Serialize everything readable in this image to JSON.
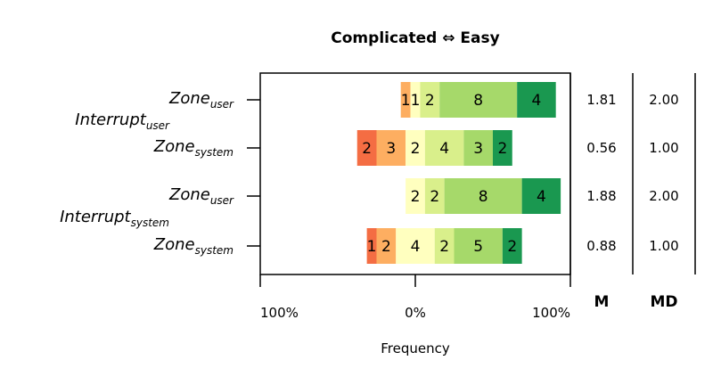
{
  "chart_data": {
    "type": "bar",
    "orientation": "horizontal",
    "stacked": "diverging",
    "title": "Complicated ⇔ Easy",
    "xlabel": "Frequency",
    "x_ticks": [
      "100%",
      "0%",
      "100%"
    ],
    "xlim": [
      -100,
      100
    ],
    "groups": [
      {
        "name": "Interrupt",
        "sub": "user",
        "rows": [
          {
            "name": "Zone",
            "sub": "user",
            "counts": [
              0,
              0,
              1,
              1,
              2,
              8,
              4
            ],
            "mean": "1.81",
            "median": "2.00"
          },
          {
            "name": "Zone",
            "sub": "system",
            "counts": [
              0,
              2,
              3,
              2,
              4,
              3,
              2
            ],
            "mean": "0.56",
            "median": "1.00"
          }
        ]
      },
      {
        "name": "Interrupt",
        "sub": "system",
        "rows": [
          {
            "name": "Zone",
            "sub": "user",
            "counts": [
              0,
              0,
              0,
              2,
              2,
              8,
              4
            ],
            "mean": "1.88",
            "median": "2.00"
          },
          {
            "name": "Zone",
            "sub": "system",
            "counts": [
              0,
              1,
              2,
              4,
              2,
              5,
              2
            ],
            "mean": "0.88",
            "median": "1.00"
          }
        ]
      }
    ],
    "scale_colors": [
      "#d73027",
      "#f46d43",
      "#fdae61",
      "#ffffbf",
      "#d9ef8b",
      "#a6d96a",
      "#1a9850"
    ],
    "stats_headers": [
      "M",
      "MD"
    ],
    "grid": false,
    "legend": "none"
  }
}
